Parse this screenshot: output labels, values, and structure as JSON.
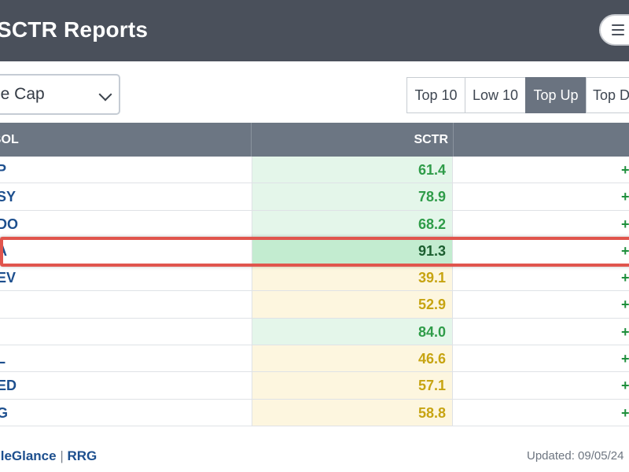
{
  "header": {
    "title": "SCTR Reports",
    "menu_icon": "hamburger-menu-icon"
  },
  "filter": {
    "selected": "rge Cap",
    "chevron_icon": "chevron-down-icon"
  },
  "tabs": [
    {
      "label": "Top 10",
      "active": false
    },
    {
      "label": "Low 10",
      "active": false
    },
    {
      "label": "Top Up",
      "active": true
    },
    {
      "label": "Top D",
      "active": false
    }
  ],
  "table": {
    "columns": {
      "symbol": "BOL",
      "sctr": "SCTR"
    },
    "rows": [
      {
        "symbol": "P",
        "sctr": "61.4",
        "change": "+",
        "tone": "green"
      },
      {
        "symbol": "SY",
        "sctr": "78.9",
        "change": "+",
        "tone": "green"
      },
      {
        "symbol": "DO",
        "sctr": "68.2",
        "change": "+",
        "tone": "green"
      },
      {
        "symbol": "A",
        "sctr": "91.3",
        "change": "+",
        "tone": "darkgreen"
      },
      {
        "symbol": "EV",
        "sctr": "39.1",
        "change": "+",
        "tone": "yellow"
      },
      {
        "symbol": "",
        "sctr": "52.9",
        "change": "+",
        "tone": "yellow"
      },
      {
        "symbol": "",
        "sctr": "84.0",
        "change": "+",
        "tone": "green"
      },
      {
        "symbol": "L",
        "sctr": "46.6",
        "change": "+",
        "tone": "yellow"
      },
      {
        "symbol": "ED",
        "sctr": "57.1",
        "change": "+",
        "tone": "yellow"
      },
      {
        "symbol": "G",
        "sctr": "58.8",
        "change": "+",
        "tone": "yellow"
      }
    ]
  },
  "footer": {
    "link1": "lleGlance",
    "separator": "|",
    "link2": "RRG",
    "updated": "Updated: 09/05/24"
  },
  "colors": {
    "green_bg": "#e4f6ea",
    "green_text": "#2f9c49",
    "darkgreen_bg": "#c3ecd0",
    "darkgreen_text": "#1b5e2f",
    "yellow_bg": "#fdf6df",
    "yellow_text": "#c7a412",
    "highlight": "#e0554d"
  }
}
